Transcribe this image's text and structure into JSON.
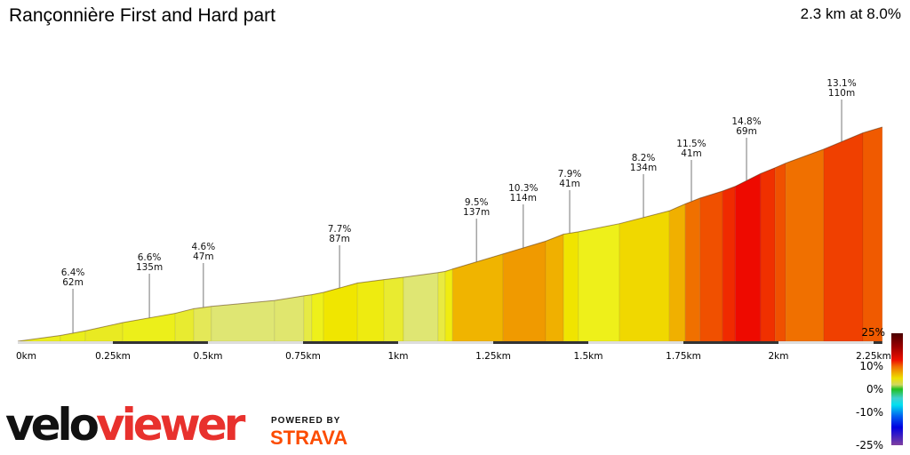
{
  "header": {
    "title": "Rançonnière First and Hard part",
    "summary": "2.3 km at 8.0%"
  },
  "chart_data": {
    "type": "area",
    "title": "Rançonnière First and Hard part",
    "xlabel": "",
    "ylabel": "",
    "xlim": [
      0,
      2.27
    ],
    "x_ticks": [
      "0km",
      "0.25km",
      "0.5km",
      "0.75km",
      "1km",
      "1.25km",
      "1.5km",
      "1.75km",
      "2km",
      "2.25km"
    ],
    "x_tick_values": [
      0,
      0.25,
      0.5,
      0.75,
      1,
      1.25,
      1.5,
      1.75,
      2,
      2.25
    ],
    "profile_points": [
      [
        0,
        0
      ],
      [
        0.112,
        5
      ],
      [
        0.178,
        9
      ],
      [
        0.276,
        16
      ],
      [
        0.414,
        24
      ],
      [
        0.463,
        28
      ],
      [
        0.509,
        30
      ],
      [
        0.675,
        35
      ],
      [
        0.752,
        39
      ],
      [
        0.773,
        40
      ],
      [
        0.804,
        42
      ],
      [
        0.893,
        50
      ],
      [
        0.963,
        53
      ],
      [
        1.014,
        55
      ],
      [
        1.105,
        59
      ],
      [
        1.124,
        60
      ],
      [
        1.143,
        62
      ],
      [
        1.276,
        75
      ],
      [
        1.388,
        86
      ],
      [
        1.435,
        92
      ],
      [
        1.474,
        94
      ],
      [
        1.582,
        101
      ],
      [
        1.713,
        112
      ],
      [
        1.755,
        118
      ],
      [
        1.794,
        123
      ],
      [
        1.853,
        129
      ],
      [
        1.886,
        133
      ],
      [
        1.953,
        144
      ],
      [
        1.991,
        149
      ],
      [
        2.019,
        153
      ],
      [
        2.119,
        165
      ],
      [
        2.222,
        179
      ],
      [
        2.273,
        184
      ]
    ],
    "segment_colors": [
      "#ecee20",
      "#eaee1c",
      "#e9ea22",
      "#ecef1a",
      "#e8eb30",
      "#e4e858",
      "#dfe673",
      "#e0e66e",
      "#e6ea45",
      "#eef01a",
      "#f0e600",
      "#eeeb10",
      "#e9eb30",
      "#dfe673",
      "#e9ea40",
      "#f0ec10",
      "#f0b400",
      "#f09a00",
      "#f0b000",
      "#f0e400",
      "#eef01a",
      "#f0d800",
      "#f0b000",
      "#f07000",
      "#f05000",
      "#f02a00",
      "#ee0a00",
      "#f03000",
      "#f05000",
      "#f07000",
      "#f04000",
      "#f05a00"
    ],
    "annotations": [
      {
        "km": 0.145,
        "grade": "6.4%",
        "length": "62m"
      },
      {
        "km": 0.346,
        "grade": "6.6%",
        "length": "135m"
      },
      {
        "km": 0.488,
        "grade": "4.6%",
        "length": "47m"
      },
      {
        "km": 0.846,
        "grade": "7.7%",
        "length": "87m"
      },
      {
        "km": 1.206,
        "grade": "9.5%",
        "length": "137m"
      },
      {
        "km": 1.329,
        "grade": "10.3%",
        "length": "114m"
      },
      {
        "km": 1.451,
        "grade": "7.9%",
        "length": "41m"
      },
      {
        "km": 1.645,
        "grade": "8.2%",
        "length": "134m"
      },
      {
        "km": 1.771,
        "grade": "11.5%",
        "length": "41m"
      },
      {
        "km": 1.916,
        "grade": "14.8%",
        "length": "69m"
      },
      {
        "km": 2.166,
        "grade": "13.1%",
        "length": "110m"
      }
    ],
    "grid": false
  },
  "legend": {
    "labels": [
      "25%",
      "10%",
      "0%",
      "-10%",
      "-25%"
    ]
  },
  "branding": {
    "logo_velo": "velo",
    "logo_viewer": "viewer",
    "powered_by": "POWERED BY",
    "strava": "STRAVA",
    "strava_color": "#fc4c02"
  }
}
